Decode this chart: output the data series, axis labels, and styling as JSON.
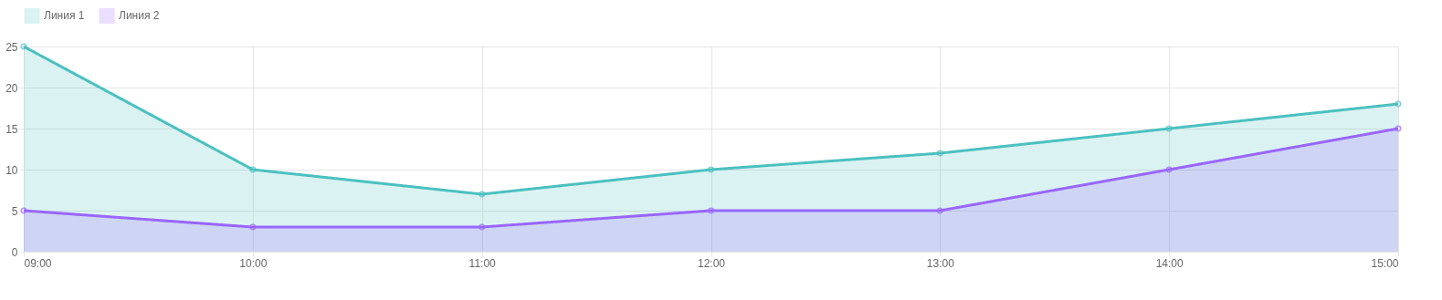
{
  "chart_data": {
    "type": "area",
    "categories": [
      "09:00",
      "10:00",
      "11:00",
      "12:00",
      "13:00",
      "14:00",
      "15:00"
    ],
    "series": [
      {
        "name": "Линия 1",
        "color": "#4bc0c0",
        "values": [
          25,
          10,
          7,
          10,
          12,
          15,
          18
        ]
      },
      {
        "name": "Линия 2",
        "color": "#9966ff",
        "values": [
          5,
          3,
          3,
          5,
          5,
          10,
          15
        ]
      }
    ],
    "ylim": [
      0,
      25
    ],
    "yticks": [
      0,
      5,
      10,
      15,
      20,
      25
    ],
    "grid": true,
    "legend": "top",
    "marker": "circle",
    "line_style": "solid"
  }
}
